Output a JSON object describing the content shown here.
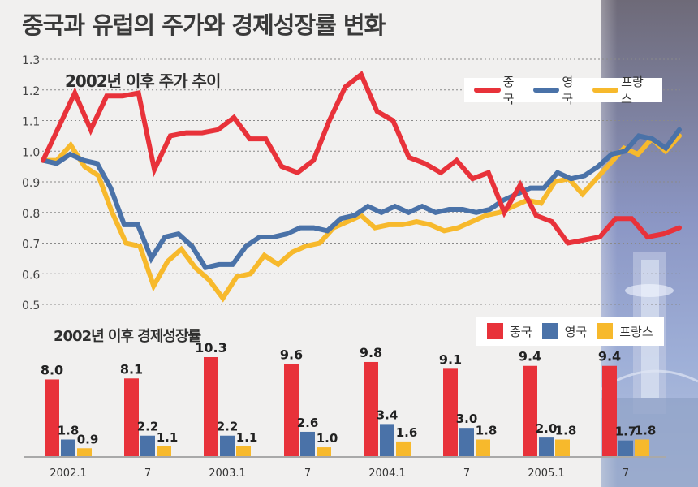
{
  "title": "중국과 유럽의 주가와 경제성장률 변화",
  "colors": {
    "china": "#e8323a",
    "uk": "#4a72a8",
    "france": "#f7b92c",
    "background": "#f1f0ef"
  },
  "chart_data": [
    {
      "type": "line",
      "title": "2002년 이후 주가 추이",
      "xlabel": "",
      "ylabel": "",
      "ylim": [
        0.5,
        1.3
      ],
      "yticks": [
        "1.3",
        "1.2",
        "1.1",
        "1.0",
        "0.9",
        "0.8",
        "0.7",
        "0.6",
        "0.5"
      ],
      "grid": true,
      "legend_position": "top-right",
      "series": [
        {
          "name": "중국",
          "color": "#e8323a",
          "values": [
            0.97,
            1.08,
            1.19,
            1.07,
            1.18,
            1.18,
            1.19,
            0.94,
            1.05,
            1.06,
            1.06,
            1.07,
            1.11,
            1.04,
            1.04,
            0.95,
            0.93,
            0.97,
            1.1,
            1.21,
            1.25,
            1.13,
            1.1,
            0.98,
            0.96,
            0.93,
            0.97,
            0.91,
            0.93,
            0.8,
            0.89,
            0.79,
            0.77,
            0.7,
            0.71,
            0.72,
            0.78,
            0.78,
            0.72,
            0.73,
            0.75
          ]
        },
        {
          "name": "영국",
          "color": "#4a72a8",
          "values": [
            0.97,
            0.96,
            0.99,
            0.97,
            0.96,
            0.88,
            0.76,
            0.76,
            0.65,
            0.72,
            0.73,
            0.69,
            0.62,
            0.63,
            0.63,
            0.69,
            0.72,
            0.72,
            0.73,
            0.75,
            0.75,
            0.74,
            0.78,
            0.79,
            0.82,
            0.8,
            0.82,
            0.8,
            0.82,
            0.8,
            0.81,
            0.81,
            0.8,
            0.81,
            0.84,
            0.86,
            0.88,
            0.88,
            0.93,
            0.91,
            0.92,
            0.95,
            0.99,
            1.0,
            1.05,
            1.04,
            1.01,
            1.07
          ]
        },
        {
          "name": "프랑스",
          "color": "#f7b92c",
          "values": [
            0.97,
            0.97,
            1.02,
            0.95,
            0.92,
            0.8,
            0.7,
            0.69,
            0.56,
            0.64,
            0.68,
            0.62,
            0.58,
            0.52,
            0.59,
            0.6,
            0.66,
            0.63,
            0.67,
            0.69,
            0.7,
            0.75,
            0.77,
            0.79,
            0.75,
            0.76,
            0.76,
            0.77,
            0.76,
            0.74,
            0.75,
            0.77,
            0.79,
            0.8,
            0.82,
            0.84,
            0.83,
            0.9,
            0.91,
            0.86,
            0.91,
            0.96,
            1.01,
            0.99,
            1.04,
            1.0,
            1.05
          ]
        }
      ]
    },
    {
      "type": "bar",
      "title": "2002년 이후 경제성장률",
      "categories": [
        "2002.1",
        "7",
        "2003.1",
        "7",
        "2004.1",
        "7",
        "2005.1",
        "7"
      ],
      "legend_position": "top-right",
      "series": [
        {
          "name": "중국",
          "color": "#e8323a",
          "values": [
            8.0,
            8.1,
            10.3,
            9.6,
            9.8,
            9.1,
            9.4,
            9.4
          ],
          "labels": [
            "8.0",
            "8.1",
            "10.3",
            "9.6",
            "9.8",
            "9.1",
            "9.4",
            "9.4"
          ]
        },
        {
          "name": "영국",
          "color": "#4a72a8",
          "values": [
            1.8,
            2.2,
            2.2,
            2.6,
            3.4,
            3.0,
            2.0,
            1.7
          ],
          "labels": [
            "1.8",
            "2.2",
            "2.2",
            "2.6",
            "3.4",
            "3.0",
            "2.0",
            "1.7"
          ]
        },
        {
          "name": "프랑스",
          "color": "#f7b92c",
          "values": [
            0.9,
            1.1,
            1.1,
            1.0,
            1.6,
            1.8,
            1.8,
            1.8
          ],
          "labels": [
            "0.9",
            "1.1",
            "1.1",
            "1.0",
            "1.6",
            "1.8",
            "1.8",
            "1.8"
          ]
        }
      ]
    }
  ]
}
